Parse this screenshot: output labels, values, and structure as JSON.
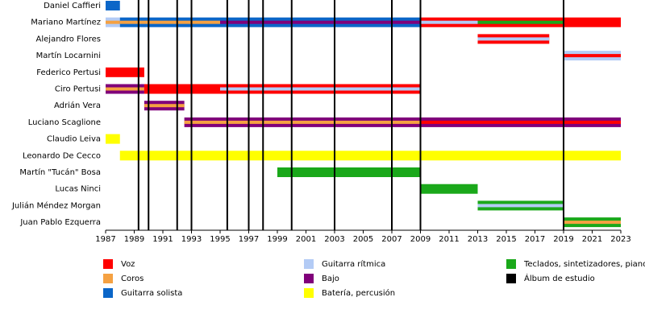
{
  "chart_data": {
    "type": "timeline",
    "xlim": [
      1987,
      2023
    ],
    "xticks": [
      1987,
      1989,
      1991,
      1993,
      1995,
      1997,
      1999,
      2001,
      2003,
      2005,
      2007,
      2009,
      2011,
      2013,
      2015,
      2017,
      2019,
      2021,
      2023
    ],
    "roles": [
      {
        "name": "Voz",
        "color": "#ff0000"
      },
      {
        "name": "Coros",
        "color": "#f5a142"
      },
      {
        "name": "Guitarra solista",
        "color": "#0b66c8"
      },
      {
        "name": "Guitarra rítmica",
        "color": "#b3cbf5"
      },
      {
        "name": "Bajo",
        "color": "#80007a"
      },
      {
        "name": "Batería, percusión",
        "color": "#ffff00"
      },
      {
        "name": "Teclados, sintetizadores, piano",
        "color": "#1aa81a"
      }
    ],
    "albums": {
      "name": "Álbum de estudio",
      "color": "#000000",
      "years": [
        1989.3,
        1990,
        1992,
        1993,
        1995.5,
        1997,
        1998,
        2000,
        2003,
        2007,
        2009,
        2019
      ]
    },
    "members": [
      {
        "name": "Daniel Caffieri",
        "bars": [
          {
            "start": 1987,
            "end": 1988,
            "role": "Guitarra solista"
          }
        ]
      },
      {
        "name": "Mariano Martínez",
        "bars": [
          {
            "start": 1987,
            "end": 1988,
            "role": "Guitarra rítmica",
            "inner": "Coros"
          },
          {
            "start": 1988,
            "end": 1995,
            "role": "Guitarra solista",
            "inner": "Coros"
          },
          {
            "start": 1995,
            "end": 2009,
            "role": "Guitarra solista",
            "inner": "Bajo"
          },
          {
            "start": 2009,
            "end": 2013,
            "role": "Voz",
            "inner": "Guitarra rítmica"
          },
          {
            "start": 2013,
            "end": 2019,
            "role": "Voz",
            "inner": "Teclados, sintetizadores, piano"
          },
          {
            "start": 2019,
            "end": 2023,
            "role": "Voz"
          }
        ]
      },
      {
        "name": "Alejandro Flores",
        "bars": [
          {
            "start": 2013,
            "end": 2018,
            "role": "Voz",
            "inner": "Guitarra rítmica"
          }
        ]
      },
      {
        "name": "Martín Locarnini",
        "bars": [
          {
            "start": 2019,
            "end": 2023,
            "role": "Guitarra rítmica",
            "inner": "Voz"
          }
        ]
      },
      {
        "name": "Federico Pertusi",
        "bars": [
          {
            "start": 1987,
            "end": 1989.7,
            "role": "Voz"
          }
        ]
      },
      {
        "name": "Ciro Pertusi",
        "bars": [
          {
            "start": 1987,
            "end": 1989.7,
            "role": "Bajo",
            "inner": "Coros"
          },
          {
            "start": 1989.7,
            "end": 1995,
            "role": "Voz"
          },
          {
            "start": 1995,
            "end": 2009,
            "role": "Voz",
            "inner": "Guitarra rítmica"
          }
        ]
      },
      {
        "name": "Adrián Vera",
        "bars": [
          {
            "start": 1989.7,
            "end": 1992.5,
            "role": "Bajo",
            "inner": "Coros"
          }
        ]
      },
      {
        "name": "Luciano Scaglione",
        "bars": [
          {
            "start": 1992.5,
            "end": 2009,
            "role": "Bajo",
            "inner": "Coros"
          },
          {
            "start": 2009,
            "end": 2023,
            "role": "Bajo",
            "inner": "Voz"
          }
        ]
      },
      {
        "name": "Claudio Leiva",
        "bars": [
          {
            "start": 1987,
            "end": 1988,
            "role": "Batería, percusión"
          }
        ]
      },
      {
        "name": "Leonardo De Cecco",
        "bars": [
          {
            "start": 1988,
            "end": 2023,
            "role": "Batería, percusión"
          }
        ]
      },
      {
        "name": "Martín \"Tucán\" Bosa",
        "bars": [
          {
            "start": 1999,
            "end": 2009,
            "role": "Teclados, sintetizadores, piano"
          }
        ]
      },
      {
        "name": "Lucas Ninci",
        "bars": [
          {
            "start": 2009,
            "end": 2013,
            "role": "Teclados, sintetizadores, piano"
          }
        ]
      },
      {
        "name": "Julián Méndez Morgan",
        "bars": [
          {
            "start": 2013,
            "end": 2019,
            "role": "Teclados, sintetizadores, piano",
            "inner": "Guitarra rítmica"
          }
        ]
      },
      {
        "name": "Juan Pablo Ezquerra",
        "bars": [
          {
            "start": 2019,
            "end": 2023,
            "role": "Teclados, sintetizadores, piano",
            "inner": "Coros"
          }
        ]
      }
    ]
  }
}
